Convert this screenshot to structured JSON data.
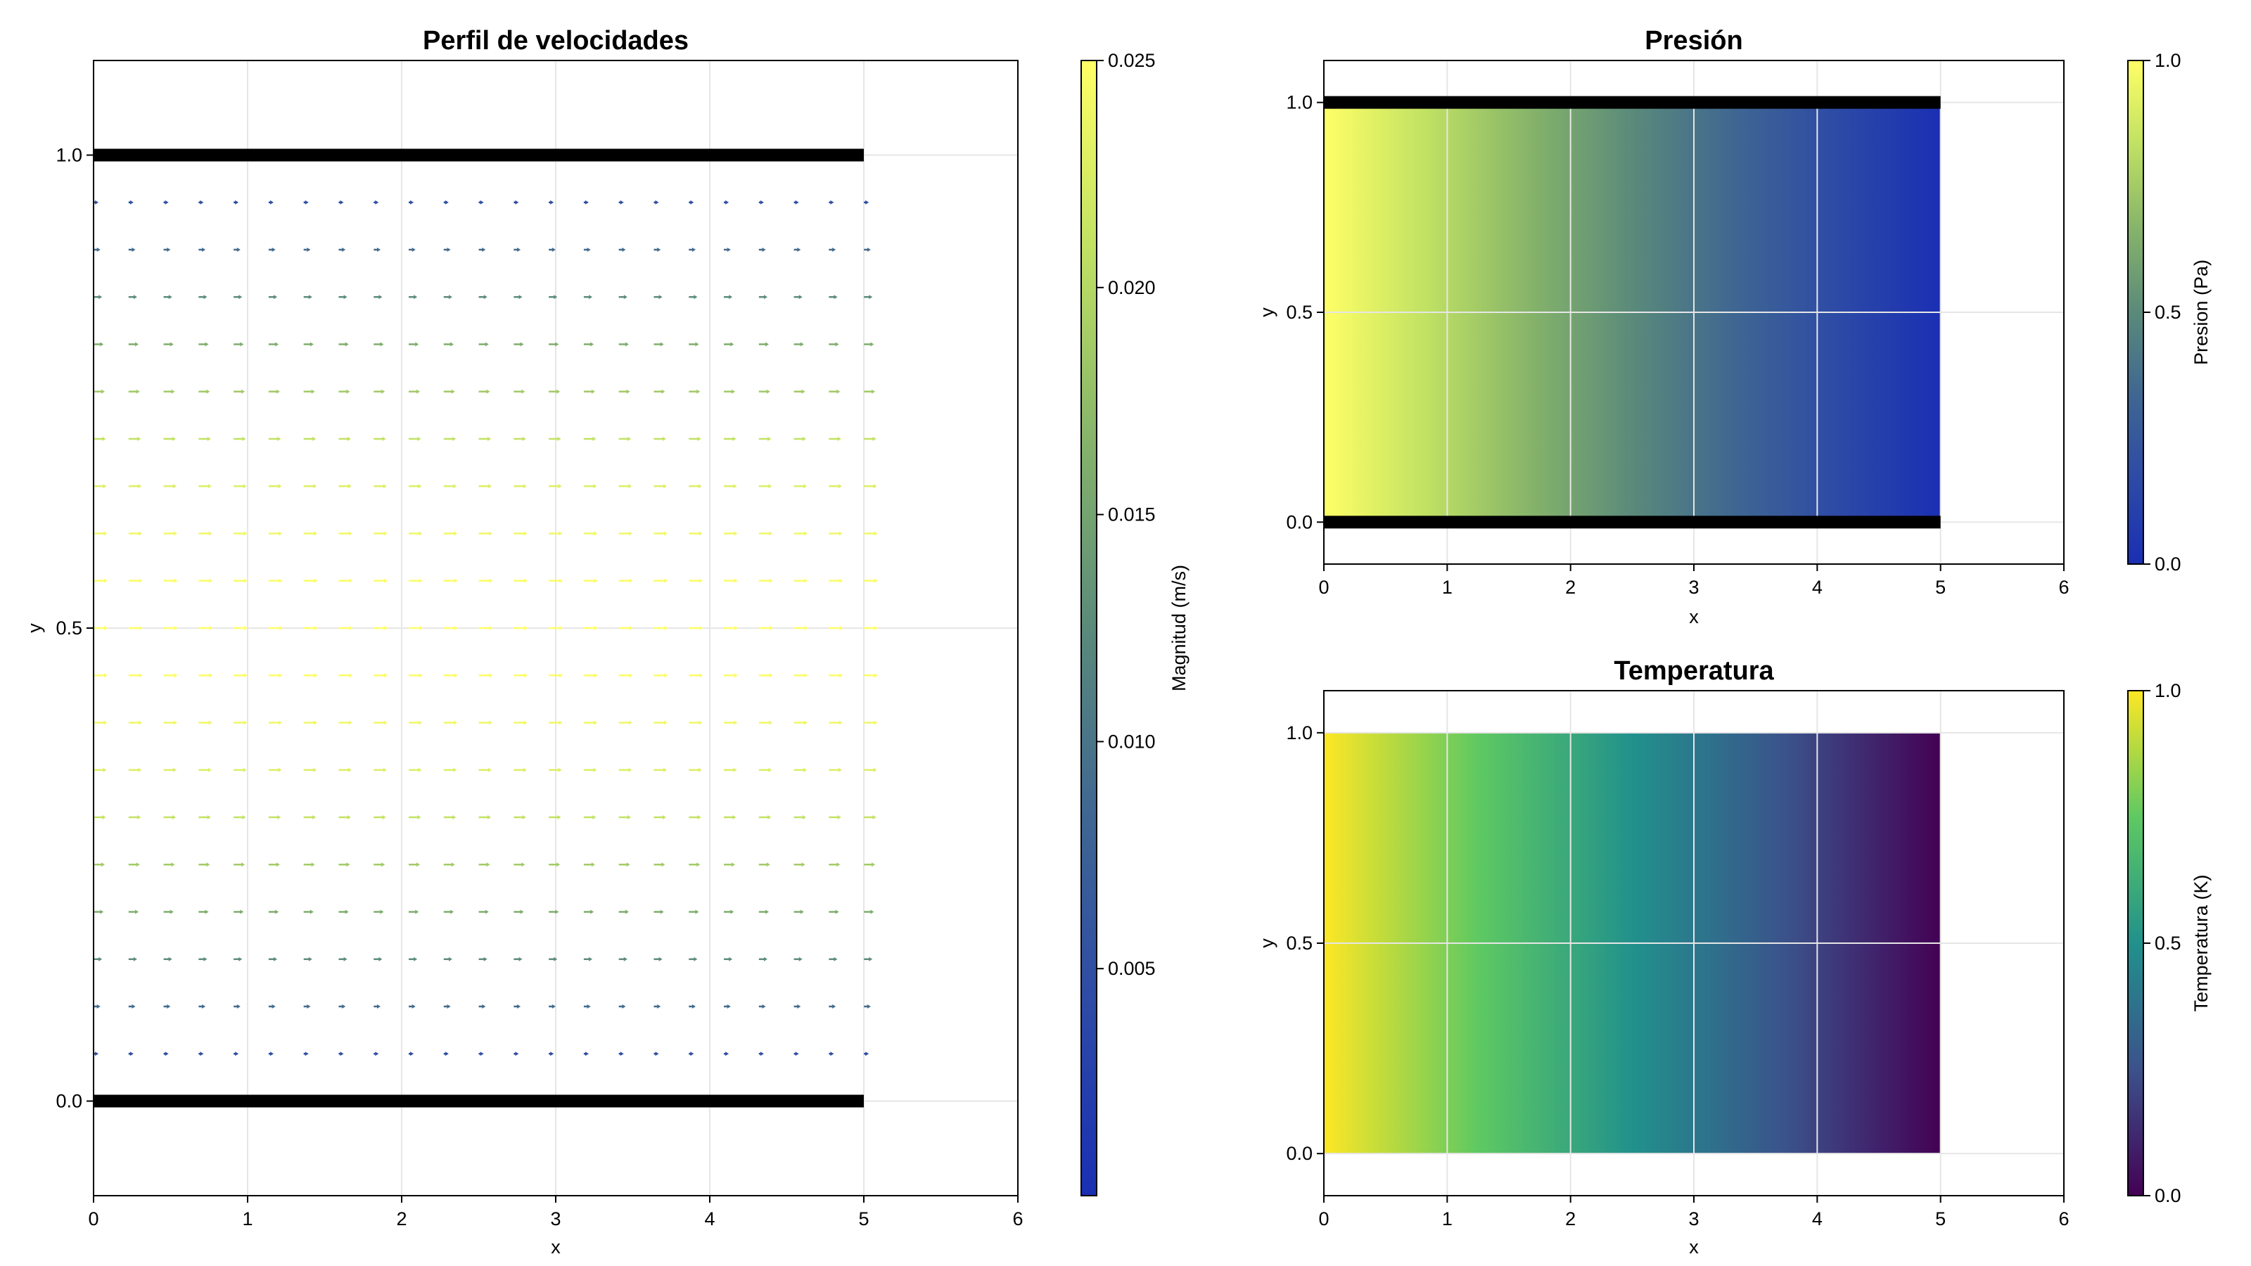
{
  "colormaps": {
    "plasma_like_blue_yellow": [
      "#1a2fb3",
      "#2d4aa6",
      "#3f6692",
      "#5a8a7a",
      "#86b46a",
      "#c0e163",
      "#ffff66"
    ],
    "viridis": [
      "#440154",
      "#3b528b",
      "#21918c",
      "#5ec962",
      "#fde725"
    ]
  },
  "chart_data": [
    {
      "type": "quiver",
      "title": "Perfil de velocidades",
      "xlabel": "x",
      "ylabel": "y",
      "xlim": [
        0,
        6
      ],
      "ylim": [
        -0.1,
        1.1
      ],
      "xticks": [
        "0",
        "1",
        "2",
        "3",
        "4",
        "5",
        "6"
      ],
      "yticks": [
        "0.0",
        "0.5",
        "1.0"
      ],
      "grid": true,
      "walls": [
        {
          "x": [
            0,
            5
          ],
          "y": 0.0,
          "color": "#000000"
        },
        {
          "x": [
            0,
            5
          ],
          "y": 1.0,
          "color": "#000000"
        }
      ],
      "field": {
        "x_start": 0.0,
        "x_step": 0.2273,
        "x_count": 23,
        "y_start": 0.05,
        "y_step": 0.05,
        "y_count": 19,
        "velocity_profile": "parabolic",
        "max_magnitude": 0.025
      },
      "colorbar": {
        "label": "Magnitud (m/s)",
        "range": [
          0,
          0.025
        ],
        "ticks": [
          "0.005",
          "0.010",
          "0.015",
          "0.020",
          "0.025"
        ],
        "tick_values": [
          0.005,
          0.01,
          0.015,
          0.02,
          0.025
        ],
        "colormap": "plasma_like_blue_yellow"
      }
    },
    {
      "type": "heatmap",
      "title": "Presión",
      "xlabel": "x",
      "ylabel": "y",
      "xlim": [
        0,
        6
      ],
      "ylim": [
        -0.1,
        1.1
      ],
      "xticks": [
        "0",
        "1",
        "2",
        "3",
        "4",
        "5",
        "6"
      ],
      "yticks": [
        "0.0",
        "0.5",
        "1.0"
      ],
      "grid": true,
      "domain": {
        "x": [
          0,
          5
        ],
        "y": [
          0,
          1
        ]
      },
      "values_along_x": {
        "x": [
          0,
          5
        ],
        "value": [
          1.0,
          0.0
        ]
      },
      "walls": [
        {
          "x": [
            0,
            5
          ],
          "y": 0.0,
          "color": "#000000"
        },
        {
          "x": [
            0,
            5
          ],
          "y": 1.0,
          "color": "#000000"
        }
      ],
      "colorbar": {
        "label": "Presion (Pa)",
        "range": [
          0,
          1
        ],
        "ticks": [
          "0.0",
          "0.5",
          "1.0"
        ],
        "tick_values": [
          0.0,
          0.5,
          1.0
        ],
        "colormap": "plasma_like_blue_yellow"
      }
    },
    {
      "type": "heatmap",
      "title": "Temperatura",
      "xlabel": "x",
      "ylabel": "y",
      "xlim": [
        0,
        6
      ],
      "ylim": [
        -0.1,
        1.1
      ],
      "xticks": [
        "0",
        "1",
        "2",
        "3",
        "4",
        "5",
        "6"
      ],
      "yticks": [
        "0.0",
        "0.5",
        "1.0"
      ],
      "grid": true,
      "domain": {
        "x": [
          0,
          5
        ],
        "y": [
          0,
          1
        ]
      },
      "values_along_x": {
        "x": [
          0,
          5
        ],
        "value": [
          1.0,
          0.0
        ]
      },
      "colorbar": {
        "label": "Temperatura (K)",
        "range": [
          0,
          1
        ],
        "ticks": [
          "0.0",
          "0.5",
          "1.0"
        ],
        "tick_values": [
          0.0,
          0.5,
          1.0
        ],
        "colormap": "viridis"
      }
    }
  ]
}
